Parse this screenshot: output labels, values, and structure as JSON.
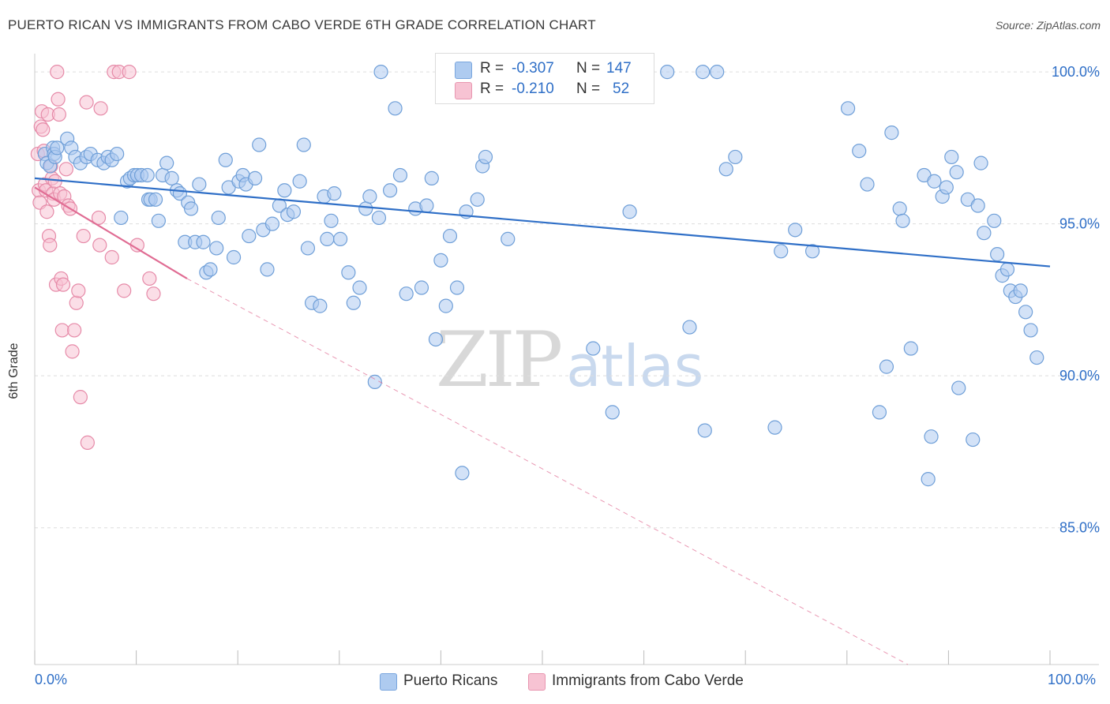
{
  "title": "PUERTO RICAN VS IMMIGRANTS FROM CABO VERDE 6TH GRADE CORRELATION CHART",
  "source": "Source: ZipAtlas.com",
  "watermark": {
    "zip": "ZIP",
    "atlas": "atlas"
  },
  "legend": {
    "rows": [
      {
        "r_label": "R =",
        "r_value": "-0.307",
        "n_label": "N =",
        "n_value": "147",
        "color": "#aecbf0",
        "border": "#7aa6de"
      },
      {
        "r_label": "R =",
        "r_value": "-0.210",
        "n_label": "N =",
        "n_value": "52",
        "color": "#f7c3d3",
        "border": "#e896b0"
      }
    ]
  },
  "bottom_legend": [
    {
      "label": "Puerto Ricans",
      "color": "#aecbf0",
      "border": "#7aa6de"
    },
    {
      "label": "Immigrants from Cabo Verde",
      "color": "#f7c3d3",
      "border": "#e896b0"
    }
  ],
  "chart_data": {
    "type": "scatter",
    "title": "PUERTO RICAN VS IMMIGRANTS FROM CABO VERDE 6TH GRADE CORRELATION CHART",
    "xlabel": "",
    "ylabel": "6th Grade",
    "x_tick_labels": [
      "0.0%",
      "100.0%"
    ],
    "y_tick_labels": [
      "85.0%",
      "90.0%",
      "95.0%",
      "100.0%"
    ],
    "y_ticks": [
      85,
      90,
      95,
      100
    ],
    "xlim": [
      0,
      100
    ],
    "ylim": [
      80.5,
      100.6
    ],
    "grid": true,
    "colors": {
      "blue_fill": "#aecbf0",
      "blue_edge": "#6f9fd8",
      "blue_line": "#2f6fc7",
      "pink_fill": "#f7c3d3",
      "pink_edge": "#e68aa8",
      "pink_line": "#e06c93"
    },
    "series": [
      {
        "name": "Puerto Ricans",
        "trend": {
          "x0": 0,
          "y0": 96.5,
          "x1": 100,
          "y1": 93.6
        },
        "points": [
          [
            1.0,
            97.3
          ],
          [
            1.2,
            97.0
          ],
          [
            1.5,
            96.9
          ],
          [
            1.8,
            97.5
          ],
          [
            1.9,
            97.3
          ],
          [
            2.0,
            97.2
          ],
          [
            2.2,
            97.5
          ],
          [
            3.2,
            97.8
          ],
          [
            3.6,
            97.5
          ],
          [
            4.0,
            97.2
          ],
          [
            4.5,
            97.0
          ],
          [
            5.1,
            97.2
          ],
          [
            5.5,
            97.3
          ],
          [
            6.2,
            97.1
          ],
          [
            6.8,
            97.0
          ],
          [
            7.2,
            97.2
          ],
          [
            7.6,
            97.1
          ],
          [
            8.1,
            97.3
          ],
          [
            8.5,
            95.2
          ],
          [
            9.1,
            96.4
          ],
          [
            9.4,
            96.5
          ],
          [
            9.8,
            96.6
          ],
          [
            10.1,
            96.6
          ],
          [
            10.5,
            96.6
          ],
          [
            11.1,
            96.6
          ],
          [
            11.2,
            95.8
          ],
          [
            11.4,
            95.8
          ],
          [
            11.9,
            95.8
          ],
          [
            12.2,
            95.1
          ],
          [
            12.6,
            96.6
          ],
          [
            13.0,
            97.0
          ],
          [
            13.5,
            96.5
          ],
          [
            14.0,
            96.1
          ],
          [
            14.3,
            96.0
          ],
          [
            14.8,
            94.4
          ],
          [
            15.1,
            95.7
          ],
          [
            15.4,
            95.5
          ],
          [
            15.8,
            94.4
          ],
          [
            16.2,
            96.3
          ],
          [
            16.6,
            94.4
          ],
          [
            16.9,
            93.4
          ],
          [
            17.3,
            93.5
          ],
          [
            17.9,
            94.2
          ],
          [
            18.1,
            95.2
          ],
          [
            18.8,
            97.1
          ],
          [
            19.1,
            96.2
          ],
          [
            19.6,
            93.9
          ],
          [
            20.1,
            96.4
          ],
          [
            20.5,
            96.6
          ],
          [
            20.8,
            96.3
          ],
          [
            21.1,
            94.6
          ],
          [
            21.7,
            96.5
          ],
          [
            22.1,
            97.6
          ],
          [
            22.5,
            94.8
          ],
          [
            22.9,
            93.5
          ],
          [
            23.4,
            95.0
          ],
          [
            24.1,
            95.6
          ],
          [
            24.6,
            96.1
          ],
          [
            24.9,
            95.3
          ],
          [
            25.5,
            95.4
          ],
          [
            26.1,
            96.4
          ],
          [
            26.5,
            97.6
          ],
          [
            26.9,
            94.2
          ],
          [
            27.3,
            92.4
          ],
          [
            28.1,
            92.3
          ],
          [
            28.5,
            95.9
          ],
          [
            28.8,
            94.5
          ],
          [
            29.2,
            95.1
          ],
          [
            29.5,
            96.0
          ],
          [
            30.1,
            94.5
          ],
          [
            30.9,
            93.4
          ],
          [
            31.4,
            92.4
          ],
          [
            32.0,
            92.9
          ],
          [
            32.6,
            95.5
          ],
          [
            33.0,
            95.9
          ],
          [
            33.5,
            89.8
          ],
          [
            33.9,
            95.2
          ],
          [
            34.1,
            100.0
          ],
          [
            35.0,
            96.1
          ],
          [
            35.5,
            98.8
          ],
          [
            36.0,
            96.6
          ],
          [
            36.6,
            92.7
          ],
          [
            37.5,
            95.5
          ],
          [
            38.1,
            92.9
          ],
          [
            38.6,
            95.6
          ],
          [
            39.1,
            96.5
          ],
          [
            39.5,
            91.2
          ],
          [
            40.0,
            93.8
          ],
          [
            40.5,
            92.3
          ],
          [
            40.9,
            94.6
          ],
          [
            41.6,
            92.9
          ],
          [
            42.1,
            86.8
          ],
          [
            42.5,
            95.4
          ],
          [
            43.1,
            100.0
          ],
          [
            43.6,
            95.8
          ],
          [
            44.1,
            96.9
          ],
          [
            44.4,
            97.2
          ],
          [
            46.0,
            100.0
          ],
          [
            46.6,
            94.5
          ],
          [
            48.1,
            100.0
          ],
          [
            50.1,
            100.0
          ],
          [
            55.0,
            90.9
          ],
          [
            56.9,
            88.8
          ],
          [
            58.6,
            95.4
          ],
          [
            62.3,
            100.0
          ],
          [
            64.5,
            91.6
          ],
          [
            65.8,
            100.0
          ],
          [
            66.0,
            88.2
          ],
          [
            67.2,
            100.0
          ],
          [
            68.1,
            96.8
          ],
          [
            69.0,
            97.2
          ],
          [
            72.9,
            88.3
          ],
          [
            73.5,
            94.1
          ],
          [
            74.9,
            94.8
          ],
          [
            76.6,
            94.1
          ],
          [
            80.1,
            98.8
          ],
          [
            81.2,
            97.4
          ],
          [
            82.0,
            96.3
          ],
          [
            83.2,
            88.8
          ],
          [
            83.9,
            90.3
          ],
          [
            84.4,
            98.0
          ],
          [
            85.2,
            95.5
          ],
          [
            85.5,
            95.1
          ],
          [
            86.3,
            90.9
          ],
          [
            87.6,
            96.6
          ],
          [
            88.0,
            86.6
          ],
          [
            88.3,
            88.0
          ],
          [
            88.6,
            96.4
          ],
          [
            89.4,
            95.9
          ],
          [
            89.8,
            96.2
          ],
          [
            90.3,
            97.2
          ],
          [
            90.8,
            96.7
          ],
          [
            91.0,
            89.6
          ],
          [
            91.9,
            95.8
          ],
          [
            92.4,
            87.9
          ],
          [
            92.9,
            95.6
          ],
          [
            93.2,
            97.0
          ],
          [
            93.5,
            94.7
          ],
          [
            94.5,
            95.1
          ],
          [
            94.8,
            94.0
          ],
          [
            95.3,
            93.3
          ],
          [
            95.8,
            93.5
          ],
          [
            96.1,
            92.8
          ],
          [
            96.6,
            92.6
          ],
          [
            97.1,
            92.8
          ],
          [
            97.6,
            92.1
          ],
          [
            98.1,
            91.5
          ],
          [
            98.7,
            90.6
          ]
        ]
      },
      {
        "name": "Immigrants from Cabo Verde",
        "trend": {
          "x0": 0,
          "y0": 96.2,
          "x1": 15,
          "y1": 93.2,
          "dashed_to_x": 86,
          "dashed_to_y": 80.5
        },
        "points": [
          [
            0.3,
            97.3
          ],
          [
            0.4,
            96.1
          ],
          [
            0.5,
            95.7
          ],
          [
            0.6,
            98.2
          ],
          [
            0.7,
            98.7
          ],
          [
            0.8,
            98.1
          ],
          [
            0.9,
            97.4
          ],
          [
            1.0,
            96.3
          ],
          [
            1.1,
            96.1
          ],
          [
            1.2,
            95.4
          ],
          [
            1.3,
            98.6
          ],
          [
            1.4,
            94.6
          ],
          [
            1.5,
            94.3
          ],
          [
            1.6,
            96.9
          ],
          [
            1.7,
            96.5
          ],
          [
            1.8,
            96.0
          ],
          [
            1.9,
            95.8
          ],
          [
            2.0,
            96.4
          ],
          [
            2.1,
            93.0
          ],
          [
            2.2,
            100.0
          ],
          [
            2.3,
            99.1
          ],
          [
            2.4,
            98.6
          ],
          [
            2.5,
            96.0
          ],
          [
            2.6,
            93.2
          ],
          [
            2.7,
            91.5
          ],
          [
            2.8,
            93.0
          ],
          [
            2.9,
            95.9
          ],
          [
            3.1,
            96.8
          ],
          [
            3.3,
            95.6
          ],
          [
            3.5,
            95.5
          ],
          [
            3.7,
            90.8
          ],
          [
            3.9,
            91.5
          ],
          [
            4.1,
            92.4
          ],
          [
            4.3,
            92.8
          ],
          [
            4.5,
            89.3
          ],
          [
            4.8,
            94.6
          ],
          [
            5.1,
            99.0
          ],
          [
            5.2,
            87.8
          ],
          [
            6.3,
            95.2
          ],
          [
            6.4,
            94.3
          ],
          [
            6.5,
            98.8
          ],
          [
            7.6,
            93.9
          ],
          [
            7.8,
            100.0
          ],
          [
            8.3,
            100.0
          ],
          [
            8.8,
            92.8
          ],
          [
            9.3,
            100.0
          ],
          [
            10.1,
            94.3
          ],
          [
            11.3,
            93.2
          ],
          [
            11.7,
            92.7
          ]
        ]
      }
    ]
  }
}
